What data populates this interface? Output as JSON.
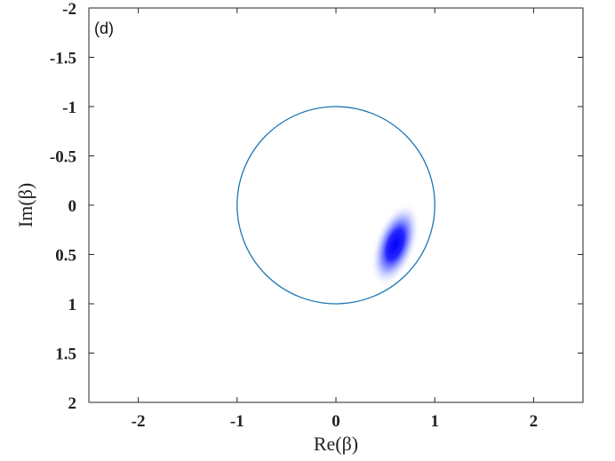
{
  "chart_data": {
    "type": "heatmap",
    "panel_label": "(d)",
    "xlabel": "Re(β)",
    "ylabel": "Im(β)",
    "xlim": [
      -2.5,
      2.5
    ],
    "ylim": [
      -2,
      2
    ],
    "y_reversed": true,
    "x_ticks": [
      -2,
      -1,
      0,
      1,
      2
    ],
    "x_tick_labels": [
      "-2",
      "-1",
      "0",
      "1",
      "2"
    ],
    "y_ticks": [
      -2,
      -1.5,
      -1,
      -0.5,
      0,
      0.5,
      1,
      1.5,
      2
    ],
    "y_tick_labels": [
      "-2",
      "-1.5",
      "-1",
      "-0.5",
      "0",
      "0.5",
      "1",
      "1.5",
      "2"
    ],
    "grid": false,
    "unit_circle": {
      "center": [
        0,
        0
      ],
      "radius": 1,
      "color": "#1f77b4"
    },
    "blob": {
      "center": [
        0.6,
        0.4
      ],
      "sigma_major": 0.15,
      "sigma_minor": 0.07,
      "tilt_deg": 20,
      "color": "#0000ff"
    }
  }
}
